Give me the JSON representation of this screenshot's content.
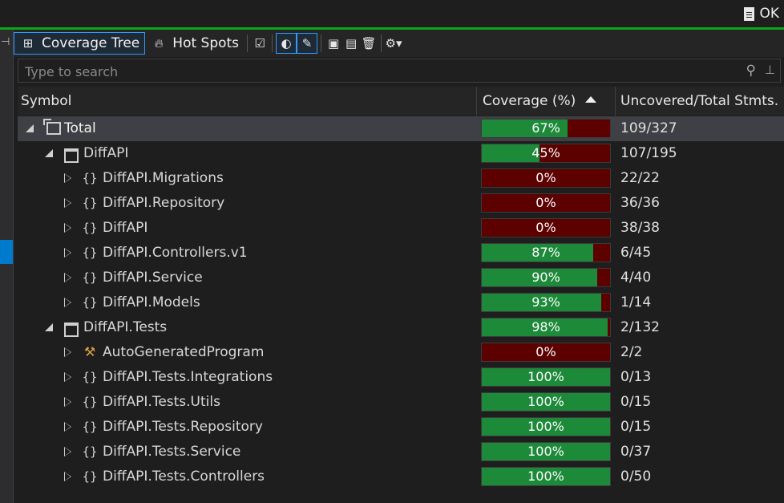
{
  "ok_button": "OK",
  "toolbar": {
    "coverage_tree_label": "Coverage Tree",
    "hot_spots_label": "Hot Spots"
  },
  "search": {
    "placeholder": "Type to search"
  },
  "columns": {
    "symbol": "Symbol",
    "coverage": "Coverage (%)",
    "stmts": "Uncovered/Total Stmts."
  },
  "rows": [
    {
      "label": "Total",
      "coverage": 67,
      "coverage_text": "67%",
      "stmts": "109/327",
      "indent": 0,
      "expander": "expanded",
      "icon": "total-icon",
      "selected": true
    },
    {
      "label": "DiffAPI",
      "coverage": 45,
      "coverage_text": "45%",
      "stmts": "107/195",
      "indent": 1,
      "expander": "expanded",
      "icon": "assembly-icon"
    },
    {
      "label": "DiffAPI.Migrations",
      "coverage": 0,
      "coverage_text": "0%",
      "stmts": "22/22",
      "indent": 2,
      "expander": "collapsed",
      "icon": "namespace-icon"
    },
    {
      "label": "DiffAPI.Repository",
      "coverage": 0,
      "coverage_text": "0%",
      "stmts": "36/36",
      "indent": 2,
      "expander": "collapsed",
      "icon": "namespace-icon"
    },
    {
      "label": "DiffAPI",
      "coverage": 0,
      "coverage_text": "0%",
      "stmts": "38/38",
      "indent": 2,
      "expander": "collapsed",
      "icon": "namespace-icon"
    },
    {
      "label": "DiffAPI.Controllers.v1",
      "coverage": 87,
      "coverage_text": "87%",
      "stmts": "6/45",
      "indent": 2,
      "expander": "collapsed",
      "icon": "namespace-icon"
    },
    {
      "label": "DiffAPI.Service",
      "coverage": 90,
      "coverage_text": "90%",
      "stmts": "4/40",
      "indent": 2,
      "expander": "collapsed",
      "icon": "namespace-icon"
    },
    {
      "label": "DiffAPI.Models",
      "coverage": 93,
      "coverage_text": "93%",
      "stmts": "1/14",
      "indent": 2,
      "expander": "collapsed",
      "icon": "namespace-icon"
    },
    {
      "label": "DiffAPI.Tests",
      "coverage": 98,
      "coverage_text": "98%",
      "stmts": "2/132",
      "indent": 1,
      "expander": "expanded",
      "icon": "assembly-icon"
    },
    {
      "label": "AutoGeneratedProgram",
      "coverage": 0,
      "coverage_text": "0%",
      "stmts": "2/2",
      "indent": 2,
      "expander": "collapsed",
      "icon": "class-icon"
    },
    {
      "label": "DiffAPI.Tests.Integrations",
      "coverage": 100,
      "coverage_text": "100%",
      "stmts": "0/13",
      "indent": 2,
      "expander": "collapsed",
      "icon": "namespace-icon"
    },
    {
      "label": "DiffAPI.Tests.Utils",
      "coverage": 100,
      "coverage_text": "100%",
      "stmts": "0/15",
      "indent": 2,
      "expander": "collapsed",
      "icon": "namespace-icon"
    },
    {
      "label": "DiffAPI.Tests.Repository",
      "coverage": 100,
      "coverage_text": "100%",
      "stmts": "0/15",
      "indent": 2,
      "expander": "collapsed",
      "icon": "namespace-icon"
    },
    {
      "label": "DiffAPI.Tests.Service",
      "coverage": 100,
      "coverage_text": "100%",
      "stmts": "0/37",
      "indent": 2,
      "expander": "collapsed",
      "icon": "namespace-icon"
    },
    {
      "label": "DiffAPI.Tests.Controllers",
      "coverage": 100,
      "coverage_text": "100%",
      "stmts": "0/50",
      "indent": 2,
      "expander": "collapsed",
      "icon": "namespace-icon"
    }
  ],
  "colors": {
    "covered": "#1d8a3a",
    "uncovered": "#5c0000",
    "accent": "#10a418",
    "selection": "#3f3f46"
  }
}
